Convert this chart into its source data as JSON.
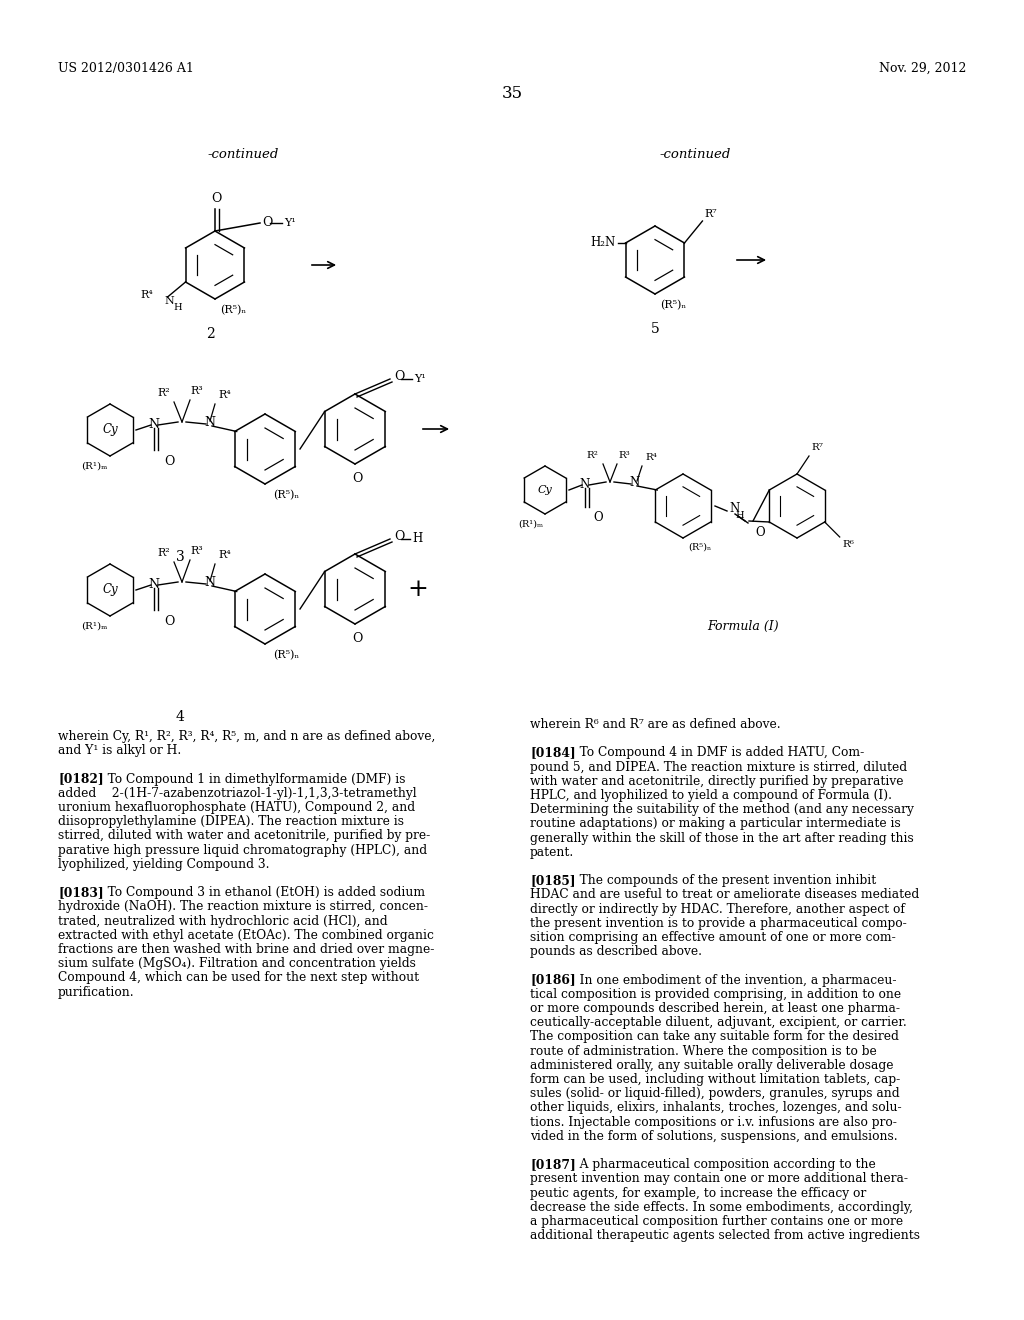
{
  "page_number": "35",
  "patent_number": "US 2012/0301426 A1",
  "patent_date": "Nov. 29, 2012",
  "background_color": "#ffffff",
  "text_color": "#000000",
  "continued_left": "-continued",
  "continued_right": "-continued",
  "left_text_block": [
    "wherein Cy, R¹, R², R³, R⁴, R⁵, m, and n are as defined above,",
    "and Y¹ is alkyl or H.",
    "",
    "[0182]   To Compound 1 in dimethylformamide (DMF) is",
    "added    2-(1H-7-azabenzotriazol-1-yl)-1,1,3,3-tetramethyl",
    "uronium hexafluorophosphate (HATU), Compound 2, and",
    "diisopropylethylamine (DIPEA). The reaction mixture is",
    "stirred, diluted with water and acetonitrile, purified by pre-",
    "parative high pressure liquid chromatography (HPLC), and",
    "lyophilized, yielding Compound 3.",
    "",
    "[0183]   To Compound 3 in ethanol (EtOH) is added sodium",
    "hydroxide (NaOH). The reaction mixture is stirred, concen-",
    "trated, neutralized with hydrochloric acid (HCl), and",
    "extracted with ethyl acetate (EtOAc). The combined organic",
    "fractions are then washed with brine and dried over magne-",
    "sium sulfate (MgSO₄). Filtration and concentration yields",
    "Compound 4, which can be used for the next step without",
    "purification."
  ],
  "right_text_block": [
    "wherein R⁶ and R⁷ are as defined above.",
    "",
    "[0184]   To Compound 4 in DMF is added HATU, Com-",
    "pound 5, and DIPEA. The reaction mixture is stirred, diluted",
    "with water and acetonitrile, directly purified by preparative",
    "HPLC, and lyophilized to yield a compound of Formula (I).",
    "Determining the suitability of the method (and any necessary",
    "routine adaptations) or making a particular intermediate is",
    "generally within the skill of those in the art after reading this",
    "patent.",
    "",
    "[0185]   The compounds of the present invention inhibit",
    "HDAC and are useful to treat or ameliorate diseases mediated",
    "directly or indirectly by HDAC. Therefore, another aspect of",
    "the present invention is to provide a pharmaceutical compo-",
    "sition comprising an effective amount of one or more com-",
    "pounds as described above.",
    "",
    "[0186]   In one embodiment of the invention, a pharmaceu-",
    "tical composition is provided comprising, in addition to one",
    "or more compounds described herein, at least one pharma-",
    "ceutically-acceptable diluent, adjuvant, excipient, or carrier.",
    "The composition can take any suitable form for the desired",
    "route of administration. Where the composition is to be",
    "administered orally, any suitable orally deliverable dosage",
    "form can be used, including without limitation tablets, cap-",
    "sules (solid- or liquid-filled), powders, granules, syrups and",
    "other liquids, elixirs, inhalants, troches, lozenges, and solu-",
    "tions. Injectable compositions or i.v. infusions are also pro-",
    "vided in the form of solutions, suspensions, and emulsions.",
    "",
    "[0187]   A pharmaceutical composition according to the",
    "present invention may contain one or more additional thera-",
    "peutic agents, for example, to increase the efficacy or",
    "decrease the side effects. In some embodiments, accordingly,",
    "a pharmaceutical composition further contains one or more",
    "additional therapeutic agents selected from active ingredients"
  ]
}
